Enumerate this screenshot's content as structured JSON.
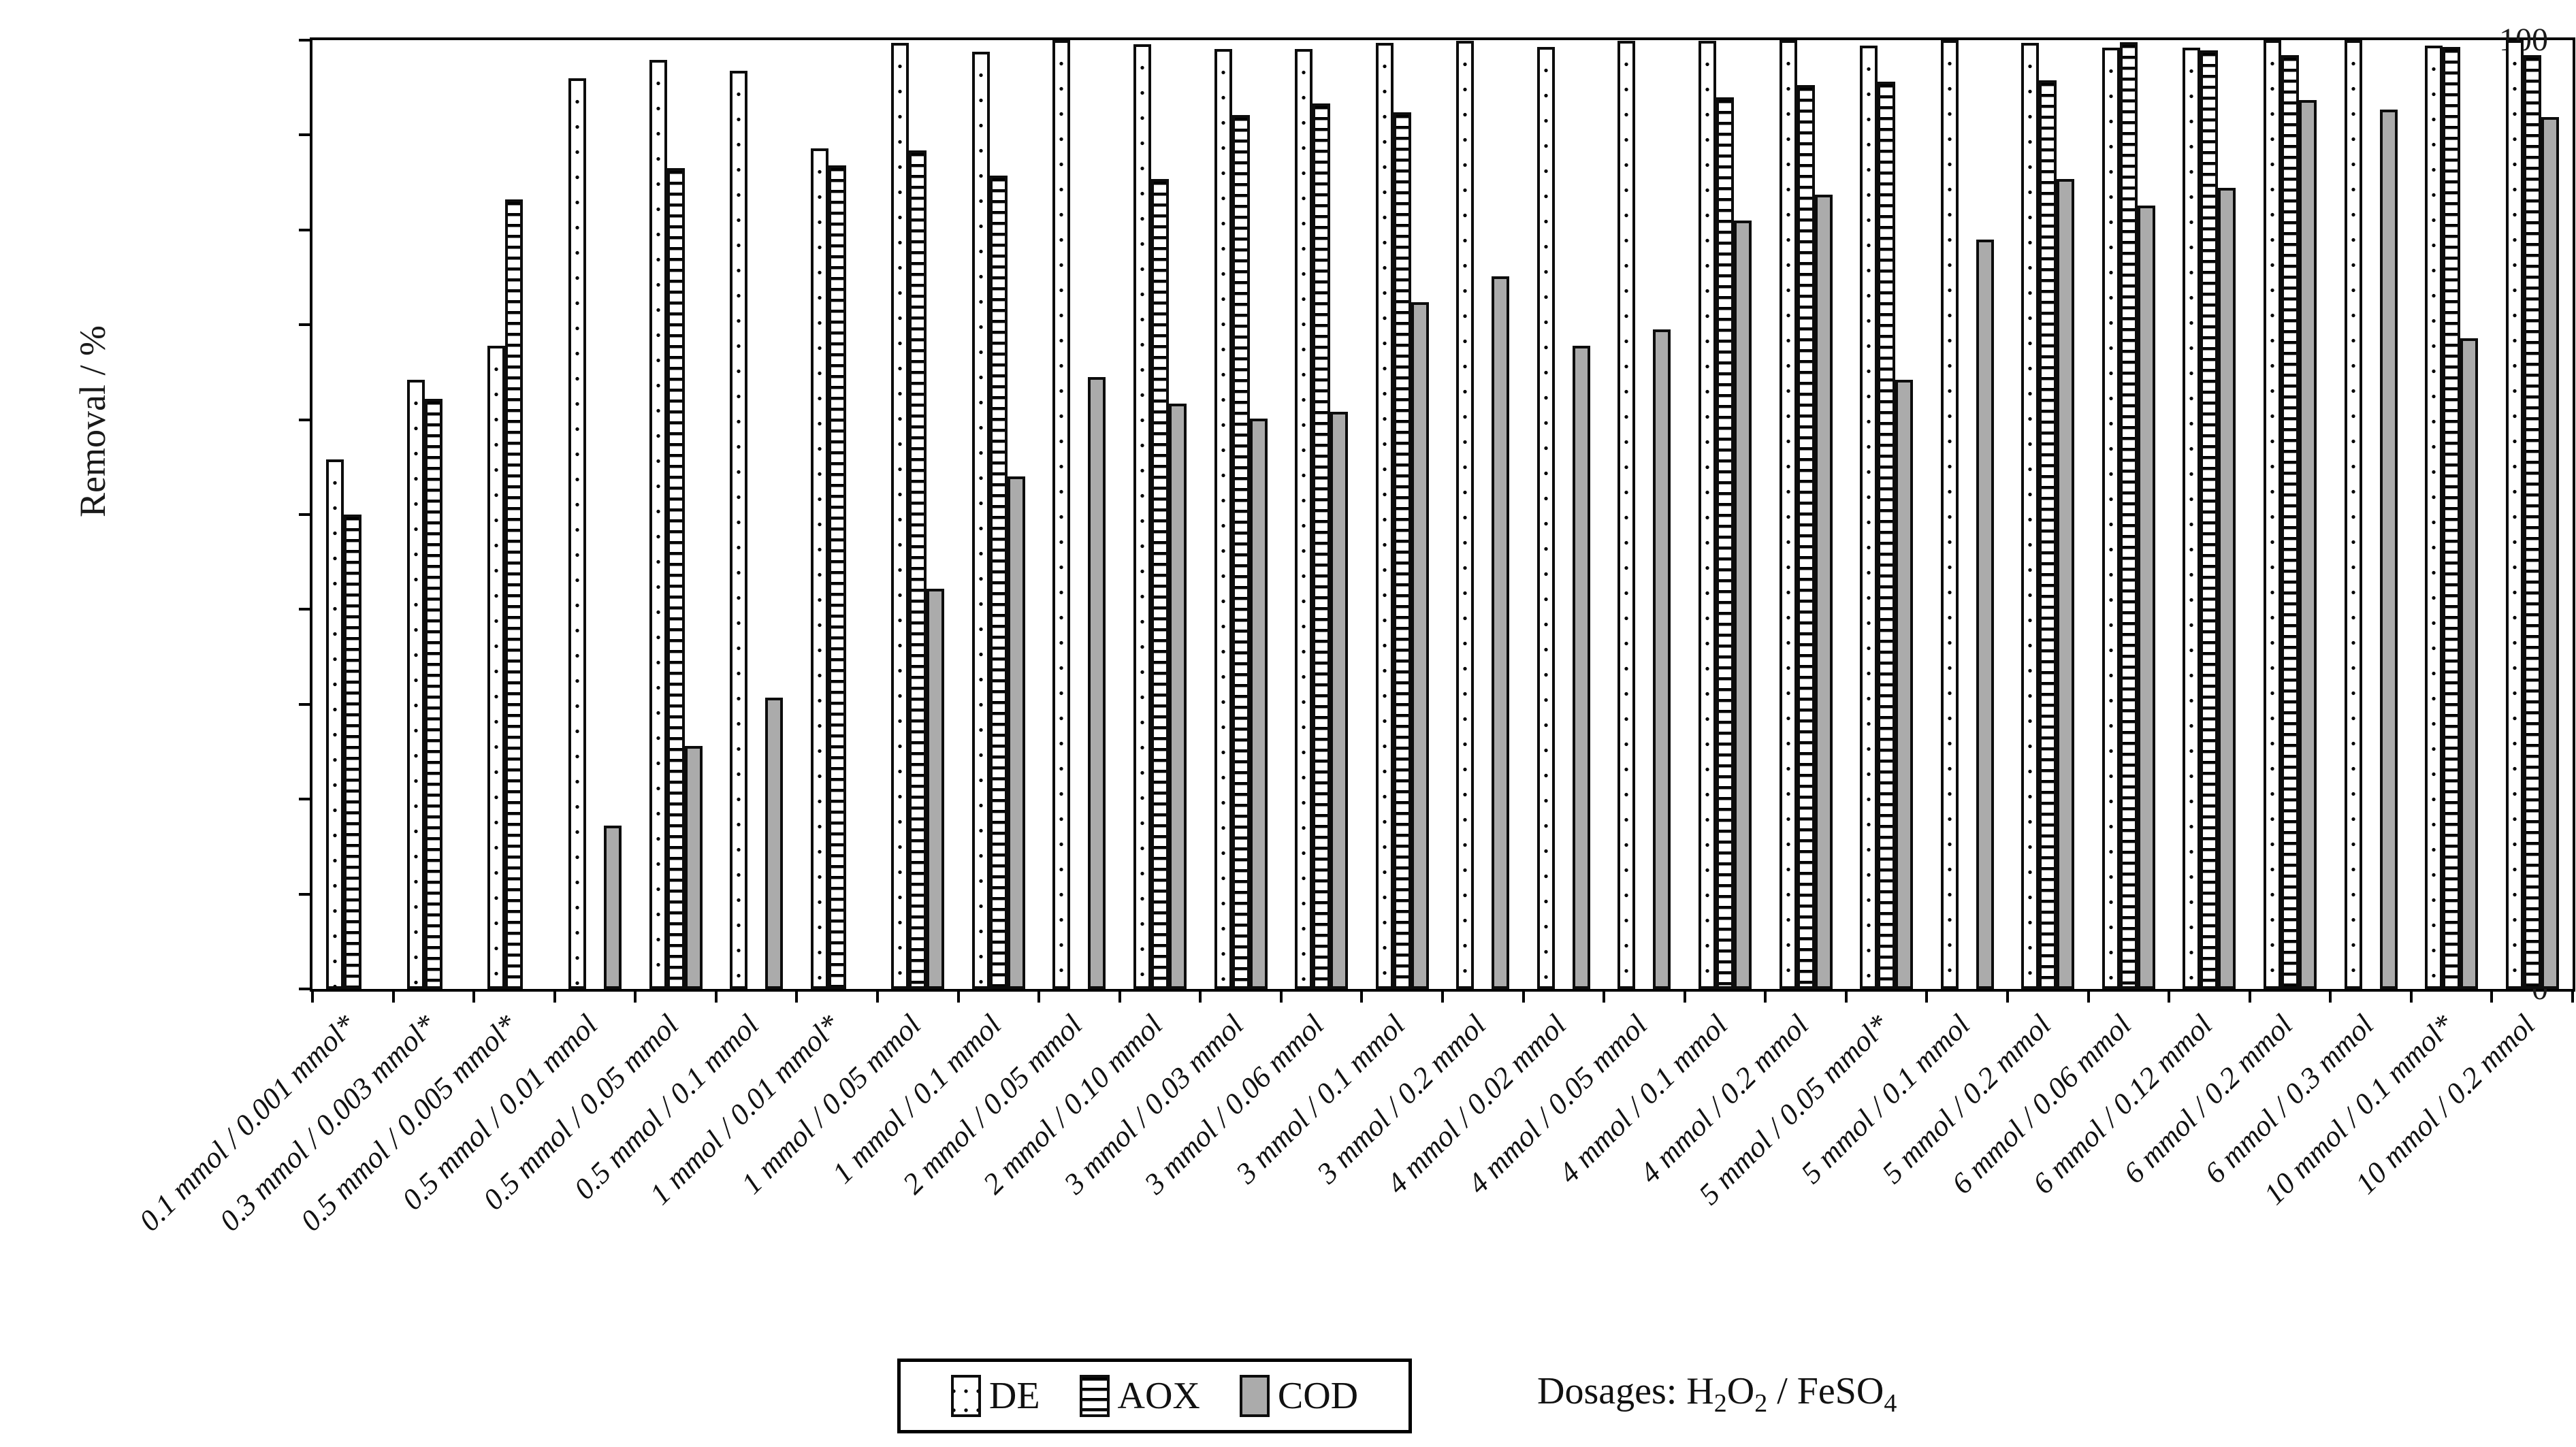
{
  "chart_data": {
    "type": "bar",
    "title": "",
    "ylabel": "Removal / %",
    "xlabel": "",
    "ylim": [
      0,
      100
    ],
    "yticks": [
      0,
      10,
      20,
      30,
      40,
      50,
      60,
      70,
      80,
      90,
      100
    ],
    "grid": false,
    "legend_position": "bottom",
    "categories": [
      "0.1 mmol / 0.001 mmol*",
      "0.3 mmol / 0.003 mmol*",
      "0.5 mmol / 0.005 mmol*",
      "0.5 mmol / 0.01 mmol",
      "0.5 mmol / 0.05 mmol",
      "0.5 mmol / 0.1 mmol",
      "1 mmol / 0.01 mmol*",
      "1 mmol / 0.05 mmol",
      "1 mmol / 0.1 mmol",
      "2 mmol / 0.05 mmol",
      "2 mmol / 0.10 mmol",
      "3 mmol / 0.03 mmol",
      "3 mmol / 0.06 mmol",
      "3 mmol / 0.1 mmol",
      "3 mmol / 0.2 mmol",
      "4 mmol / 0.02 mmol",
      "4 mmol / 0.05 mmol",
      "4 mmol / 0.1 mmol",
      "4 mmol / 0.2 mmol",
      "5 mmol / 0.05 mmol*",
      "5 mmol / 0.1 mmol",
      "5 mmol / 0.2 mmol",
      "6 mmol / 0.06 mmol",
      "6 mmol / 0.12 mmol",
      "6 mmol / 0.2 mmol",
      "6 mmol / 0.3 mmol",
      "10 mmol / 0.1 mmol*",
      "10 mmol / 0.2 mmol"
    ],
    "series": [
      {
        "name": "DE",
        "pattern": "dots",
        "values": [
          55.8,
          64.2,
          67.8,
          96.0,
          97.9,
          96.8,
          88.6,
          99.7,
          98.8,
          100,
          99.6,
          99.1,
          99.1,
          99.7,
          99.9,
          99.3,
          99.9,
          99.9,
          100,
          99.4,
          100,
          99.7,
          99.2,
          99.2,
          100,
          100,
          99.4,
          100
        ]
      },
      {
        "name": "AOX",
        "pattern": "hlines",
        "values": [
          50.0,
          62.2,
          83.2,
          null,
          86.5,
          null,
          86.8,
          88.4,
          85.7,
          null,
          85.4,
          92.1,
          93.3,
          92.4,
          null,
          null,
          null,
          94.0,
          95.3,
          95.6,
          null,
          95.8,
          99.8,
          98.9,
          98.4,
          null,
          99.3,
          98.4
        ]
      },
      {
        "name": "COD",
        "pattern": "solid",
        "color": "#ababab",
        "values": [
          null,
          null,
          null,
          17.2,
          25.6,
          30.7,
          null,
          42.2,
          54.0,
          64.5,
          61.7,
          60.1,
          60.8,
          72.4,
          75.1,
          67.8,
          69.5,
          81.0,
          83.7,
          64.2,
          79.0,
          85.4,
          82.6,
          84.4,
          93.7,
          92.7,
          68.6,
          91.9
        ]
      }
    ],
    "annotation": {
      "dosage_note_segments": [
        {
          "text": "Dosages: H",
          "sub": false
        },
        {
          "text": "2",
          "sub": true
        },
        {
          "text": "O",
          "sub": false
        },
        {
          "text": "2",
          "sub": true
        },
        {
          "text": " / FeSO",
          "sub": false
        },
        {
          "text": "4",
          "sub": true
        }
      ],
      "dosage_note_plain": "Dosages: H2O2 / FeSO4"
    }
  }
}
